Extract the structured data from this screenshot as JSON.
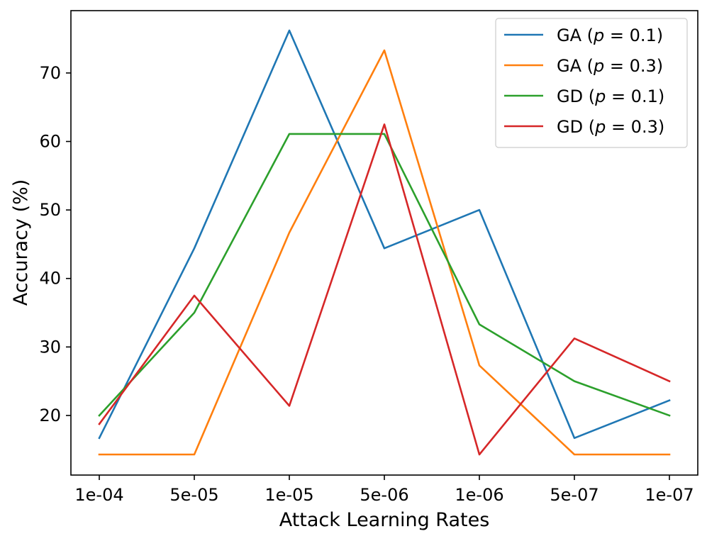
{
  "chart_data": {
    "type": "line",
    "title": "",
    "xlabel": "Attack Learning Rates",
    "ylabel": "Accuracy (%)",
    "categories": [
      "1e-04",
      "5e-05",
      "1e-05",
      "5e-06",
      "1e-06",
      "5e-07",
      "1e-07"
    ],
    "ylim": [
      11.3,
      79.1
    ],
    "yticks": [
      20,
      30,
      40,
      50,
      60,
      70
    ],
    "grid": false,
    "legend_position": "top-right",
    "series": [
      {
        "name": "GA",
        "p_label": "p = 0.1",
        "color": "#1f77b4",
        "values": [
          16.7,
          44.4,
          76.2,
          44.4,
          50.0,
          16.7,
          22.2
        ]
      },
      {
        "name": "GA",
        "p_label": "p = 0.3",
        "color": "#ff7f0e",
        "values": [
          14.3,
          14.3,
          46.7,
          73.3,
          27.3,
          14.3,
          14.3
        ]
      },
      {
        "name": "GD",
        "p_label": "p = 0.1",
        "color": "#2ca02c",
        "values": [
          20.0,
          35.0,
          61.1,
          61.1,
          33.3,
          25.0,
          20.0
        ]
      },
      {
        "name": "GD",
        "p_label": "p = 0.3",
        "color": "#d62728",
        "values": [
          18.75,
          37.5,
          21.4,
          62.5,
          14.3,
          31.25,
          25.0
        ]
      }
    ]
  }
}
